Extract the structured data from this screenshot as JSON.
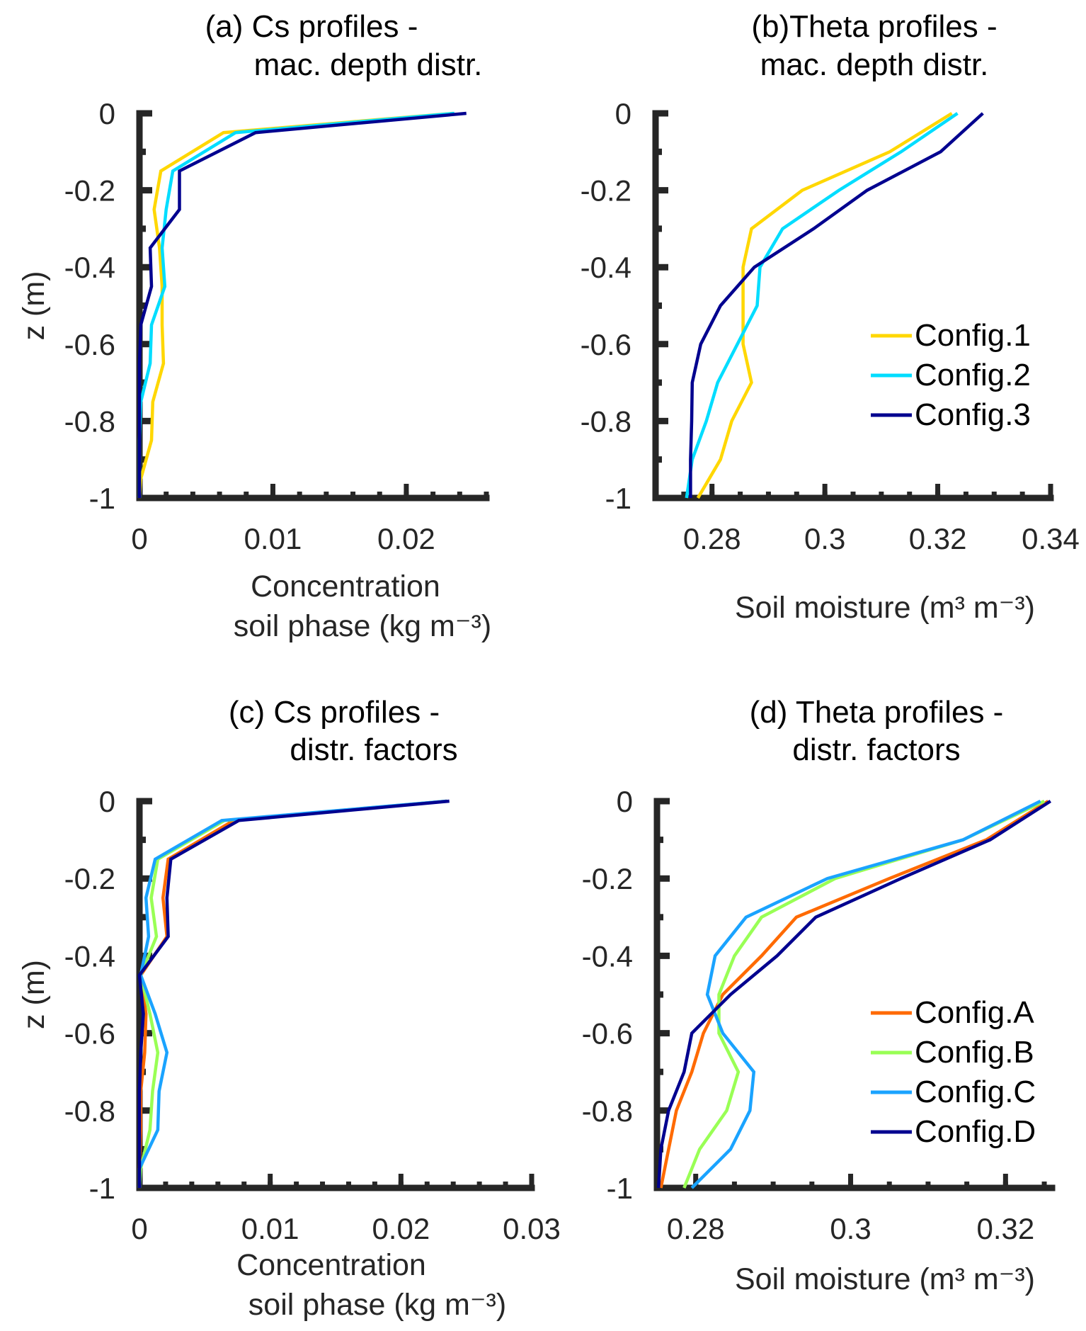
{
  "chart_data": [
    {
      "id": "a",
      "type": "line",
      "title": [
        "(a) Cs profiles -",
        "mac. depth distr."
      ],
      "xlabel": [
        "Concentration",
        "soil phase (kg m⁻³)"
      ],
      "ylabel": "z (m)",
      "xlim": [
        0,
        0.026
      ],
      "ylim": [
        -1,
        0
      ],
      "xticks": [
        0,
        0.01,
        0.02
      ],
      "xtick_labels": [
        "0",
        "0.01",
        "0.02"
      ],
      "xminor_step": 0.002,
      "yticks": [
        0,
        -0.2,
        -0.4,
        -0.6,
        -0.8,
        -1
      ],
      "ytick_labels": [
        "0",
        "-0.2",
        "-0.4",
        "-0.6",
        "-0.8",
        "-1"
      ],
      "legend": null,
      "depths": [
        0,
        -0.05,
        -0.15,
        -0.25,
        -0.35,
        -0.45,
        -0.55,
        -0.65,
        -0.75,
        -0.85,
        -0.95,
        -1
      ],
      "series": [
        {
          "name": "Config.1",
          "color": "#FFD700",
          "values": [
            0.0235,
            0.0063,
            0.0016,
            0.0011,
            0.0015,
            0.0017,
            0.0017,
            0.0018,
            0.001,
            0.0009,
            0.0001,
            0
          ]
        },
        {
          "name": "Config.2",
          "color": "#00DDFF",
          "values": [
            0.0236,
            0.0072,
            0.0025,
            0.002,
            0.0017,
            0.0019,
            0.0009,
            0.0008,
            0.0001,
            0,
            0,
            0
          ]
        },
        {
          "name": "Config.3",
          "color": "#00008F",
          "values": [
            0.0245,
            0.0087,
            0.003,
            0.003,
            0.0008,
            0.0009,
            0.0001,
            0,
            0,
            0,
            0,
            0
          ]
        }
      ]
    },
    {
      "id": "b",
      "type": "line",
      "title": [
        "(b)Theta profiles -",
        "mac. depth distr."
      ],
      "xlabel": [
        "Soil moisture (m³ m⁻³)"
      ],
      "ylabel": "",
      "xlim": [
        0.27,
        0.34
      ],
      "ylim": [
        -1,
        0
      ],
      "xticks": [
        0.28,
        0.3,
        0.32,
        0.34
      ],
      "xtick_labels": [
        "0.28",
        "0.3",
        "0.32",
        "0.34"
      ],
      "xminor_step": 0.005,
      "yticks": [
        0,
        -0.2,
        -0.4,
        -0.6,
        -0.8,
        -1
      ],
      "ytick_labels": [
        "0",
        "-0.2",
        "-0.4",
        "-0.6",
        "-0.8",
        "-1"
      ],
      "legend": "right",
      "depths": [
        0,
        -0.1,
        -0.2,
        -0.3,
        -0.4,
        -0.5,
        -0.6,
        -0.7,
        -0.8,
        -0.9,
        -1
      ],
      "series": [
        {
          "name": "Config.1",
          "color": "#FFD700",
          "values": [
            0.3225,
            0.3115,
            0.296,
            0.287,
            0.2855,
            0.2855,
            0.2855,
            0.287,
            0.2835,
            0.2815,
            0.2775
          ]
        },
        {
          "name": "Config.2",
          "color": "#00DDFF",
          "values": [
            0.3235,
            0.3135,
            0.3025,
            0.2925,
            0.2885,
            0.288,
            0.2845,
            0.281,
            0.279,
            0.2765,
            0.2755
          ]
        },
        {
          "name": "Config.3",
          "color": "#00008F",
          "values": [
            0.328,
            0.3205,
            0.3075,
            0.298,
            0.2875,
            0.2815,
            0.278,
            0.2765,
            0.2764,
            0.2762,
            0.2762
          ]
        }
      ]
    },
    {
      "id": "c",
      "type": "line",
      "title": [
        "(c) Cs profiles -",
        "distr. factors"
      ],
      "xlabel": [
        "Concentration",
        "soil phase (kg m⁻³)"
      ],
      "ylabel": "z (m)",
      "xlim": [
        0,
        0.03
      ],
      "ylim": [
        -1,
        0
      ],
      "xticks": [
        0,
        0.01,
        0.02,
        0.03
      ],
      "xtick_labels": [
        "0",
        "0.01",
        "0.02",
        "0.03"
      ],
      "xminor_step": 0.002,
      "yticks": [
        0,
        -0.2,
        -0.4,
        -0.6,
        -0.8,
        -1
      ],
      "ytick_labels": [
        "0",
        "-0.2",
        "-0.4",
        "-0.6",
        "-0.8",
        "-1"
      ],
      "legend": null,
      "depths": [
        0,
        -0.05,
        -0.15,
        -0.25,
        -0.35,
        -0.45,
        -0.55,
        -0.65,
        -0.75,
        -0.85,
        -0.95,
        -1
      ],
      "series": [
        {
          "name": "Config.A",
          "color": "#FF6A00",
          "values": [
            0.0235,
            0.0072,
            0.0022,
            0.0018,
            0.0021,
            0.0001,
            0.0005,
            0.0004,
            0.0001,
            0.0001,
            0,
            0
          ]
        },
        {
          "name": "Config.B",
          "color": "#99FF55",
          "values": [
            0.0235,
            0.0065,
            0.0014,
            0.0009,
            0.0013,
            0.0001,
            0.0008,
            0.0014,
            0.001,
            0.0008,
            0.0001,
            0
          ]
        },
        {
          "name": "Config.C",
          "color": "#1AA3FF",
          "values": [
            0.0235,
            0.0063,
            0.0012,
            0.0005,
            0.0007,
            0.0001,
            0.0012,
            0.0021,
            0.0015,
            0.0014,
            0,
            0
          ]
        },
        {
          "name": "Config.D",
          "color": "#00008F",
          "values": [
            0.0237,
            0.0076,
            0.0024,
            0.0021,
            0.0022,
            0,
            0.0003,
            0.0001,
            0,
            0,
            0,
            0
          ]
        }
      ]
    },
    {
      "id": "d",
      "type": "line",
      "title": [
        "(d) Theta profiles -",
        "distr. factors"
      ],
      "xlabel": [
        "Soil moisture (m³ m⁻³)"
      ],
      "ylabel": "",
      "xlim": [
        0.275,
        0.326
      ],
      "ylim": [
        -1,
        0
      ],
      "xticks": [
        0.28,
        0.3,
        0.32
      ],
      "xtick_labels": [
        "0.28",
        "0.3",
        "0.32"
      ],
      "xminor_step": 0.005,
      "yticks": [
        0,
        -0.2,
        -0.4,
        -0.6,
        -0.8,
        -1
      ],
      "ytick_labels": [
        "0",
        "-0.2",
        "-0.4",
        "-0.6",
        "-0.8",
        "-1"
      ],
      "legend": "right",
      "depths": [
        0,
        -0.1,
        -0.2,
        -0.3,
        -0.4,
        -0.5,
        -0.6,
        -0.7,
        -0.8,
        -0.9,
        -1
      ],
      "series": [
        {
          "name": "Config.A",
          "color": "#FF6A00",
          "values": [
            0.3255,
            0.3175,
            0.305,
            0.293,
            0.2885,
            0.2835,
            0.281,
            0.2795,
            0.2775,
            0.2765,
            0.2755
          ]
        },
        {
          "name": "Config.B",
          "color": "#99FF55",
          "values": [
            0.325,
            0.3145,
            0.298,
            0.2885,
            0.285,
            0.283,
            0.283,
            0.2855,
            0.284,
            0.2805,
            0.2785
          ]
        },
        {
          "name": "Config.C",
          "color": "#1AA3FF",
          "values": [
            0.3245,
            0.3145,
            0.297,
            0.2865,
            0.2825,
            0.2815,
            0.2835,
            0.2875,
            0.287,
            0.2845,
            0.2795
          ]
        },
        {
          "name": "Config.D",
          "color": "#00008F",
          "values": [
            0.3258,
            0.318,
            0.3065,
            0.2955,
            0.2905,
            0.2845,
            0.2795,
            0.2785,
            0.2765,
            0.2755,
            0.2752
          ]
        }
      ]
    }
  ]
}
